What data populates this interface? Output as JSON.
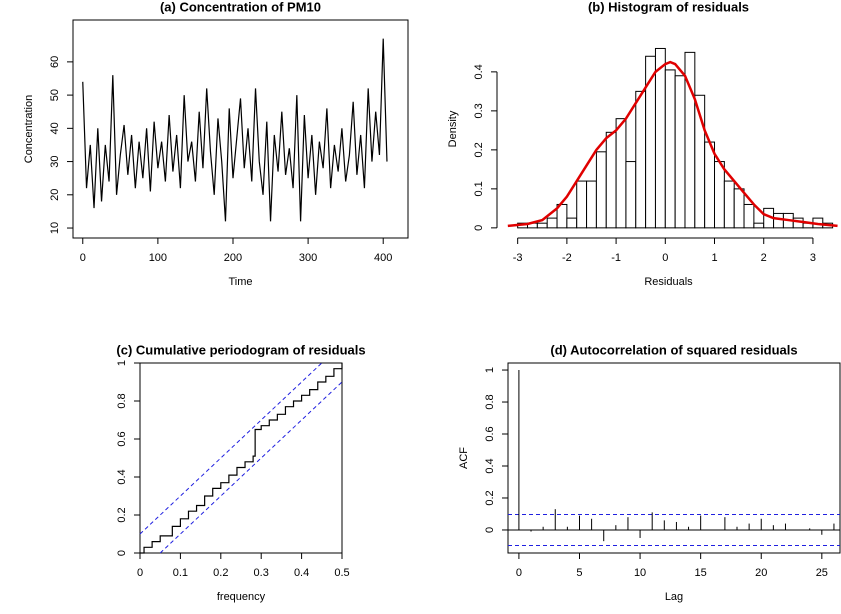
{
  "chart_data": [
    {
      "type": "line",
      "title": "(a) Concentration of PM10",
      "xlabel": "Time",
      "ylabel": "Concentration",
      "color": "#000000",
      "box": true,
      "xlim": [
        -13,
        433
      ],
      "ylim": [
        7,
        72.6
      ],
      "xticks": [
        0,
        100,
        200,
        300,
        400
      ],
      "yticks": [
        10,
        20,
        30,
        40,
        50,
        60
      ],
      "x": [
        0,
        5,
        10,
        15,
        20,
        25,
        30,
        35,
        40,
        45,
        50,
        55,
        60,
        65,
        70,
        75,
        80,
        85,
        90,
        95,
        100,
        105,
        110,
        115,
        120,
        125,
        130,
        135,
        140,
        145,
        150,
        155,
        160,
        165,
        170,
        175,
        180,
        185,
        190,
        195,
        200,
        205,
        210,
        215,
        220,
        225,
        230,
        235,
        240,
        245,
        250,
        255,
        260,
        265,
        270,
        275,
        280,
        285,
        290,
        295,
        300,
        305,
        310,
        315,
        320,
        325,
        330,
        335,
        340,
        345,
        350,
        355,
        360,
        365,
        370,
        375,
        380,
        385,
        390,
        395,
        400,
        405
      ],
      "values": [
        54,
        22,
        35,
        16,
        40,
        18,
        35,
        24,
        56,
        20,
        32,
        41,
        26,
        38,
        22,
        36,
        25,
        40,
        21,
        42,
        28,
        36,
        24,
        44,
        27,
        38,
        22,
        50,
        30,
        36,
        24,
        45,
        28,
        52,
        33,
        20,
        43,
        30,
        12,
        46,
        25,
        37,
        49,
        28,
        40,
        24,
        52,
        30,
        20,
        42,
        12,
        38,
        27,
        45,
        26,
        34,
        22,
        50,
        12,
        44,
        25,
        38,
        20,
        36,
        28,
        46,
        22,
        35,
        27,
        40,
        24,
        32,
        48,
        26,
        38,
        22,
        52,
        30,
        45,
        32,
        67,
        30
      ]
    },
    {
      "type": "histogram",
      "title": "(b) Histogram of residuals",
      "xlabel": "Residuals",
      "ylabel": "Density",
      "color": "#ffffff",
      "box": false,
      "xlim": [
        -3.42,
        3.55
      ],
      "ylim": [
        -0.026,
        0.533
      ],
      "xticks": [
        -3,
        -2,
        -1,
        0,
        1,
        2,
        3
      ],
      "yticks": [
        0.0,
        0.1,
        0.2,
        0.3,
        0.4
      ],
      "bins": [
        -3.0,
        -2.8,
        -2.6,
        -2.4,
        -2.2,
        -2.0,
        -1.8,
        -1.6,
        -1.4,
        -1.2,
        -1.0,
        -0.8,
        -0.6,
        -0.4,
        -0.2,
        0.0,
        0.2,
        0.4,
        0.6,
        0.8,
        1.0,
        1.2,
        1.4,
        1.6,
        1.8,
        2.0,
        2.2,
        2.4,
        2.6,
        2.8,
        3.0,
        3.2,
        3.4
      ],
      "values": [
        0.012,
        0.012,
        0.012,
        0.025,
        0.06,
        0.025,
        0.12,
        0.12,
        0.195,
        0.245,
        0.28,
        0.17,
        0.35,
        0.44,
        0.46,
        0.405,
        0.39,
        0.45,
        0.34,
        0.22,
        0.17,
        0.12,
        0.1,
        0.06,
        0.012,
        0.05,
        0.037,
        0.037,
        0.025,
        0.012,
        0.025,
        0.012
      ],
      "curve": {
        "color": "#e00000",
        "x": [
          -3.2,
          -2.8,
          -2.5,
          -2.2,
          -2.0,
          -1.8,
          -1.6,
          -1.4,
          -1.2,
          -1.0,
          -0.8,
          -0.6,
          -0.4,
          -0.2,
          0.0,
          0.1,
          0.2,
          0.4,
          0.6,
          0.8,
          1.0,
          1.2,
          1.4,
          1.6,
          1.8,
          2.0,
          2.2,
          2.5,
          2.8,
          3.1,
          3.5
        ],
        "values": [
          0.005,
          0.01,
          0.02,
          0.05,
          0.08,
          0.12,
          0.16,
          0.2,
          0.23,
          0.25,
          0.28,
          0.32,
          0.36,
          0.4,
          0.42,
          0.425,
          0.42,
          0.39,
          0.33,
          0.25,
          0.19,
          0.15,
          0.12,
          0.09,
          0.06,
          0.035,
          0.025,
          0.02,
          0.015,
          0.01,
          0.005
        ]
      }
    },
    {
      "type": "periodogram",
      "title": "(c) Cumulative periodogram of residuals",
      "xlabel": "frequency",
      "color": "#000000",
      "box": true,
      "xlim": [
        0,
        0.5
      ],
      "ylim": [
        0,
        1
      ],
      "xticks": [
        0.0,
        0.1,
        0.2,
        0.3,
        0.4,
        0.5
      ],
      "yticks": [
        0.0,
        0.2,
        0.4,
        0.6,
        0.8,
        1.0
      ],
      "x": [
        0,
        0.01,
        0.03,
        0.05,
        0.08,
        0.1,
        0.12,
        0.14,
        0.16,
        0.18,
        0.2,
        0.22,
        0.24,
        0.26,
        0.28,
        0.285,
        0.3,
        0.32,
        0.34,
        0.36,
        0.38,
        0.4,
        0.42,
        0.44,
        0.46,
        0.48,
        0.5
      ],
      "values": [
        0,
        0.03,
        0.06,
        0.09,
        0.14,
        0.18,
        0.22,
        0.25,
        0.3,
        0.34,
        0.37,
        0.41,
        0.45,
        0.48,
        0.51,
        0.65,
        0.67,
        0.7,
        0.73,
        0.77,
        0.8,
        0.83,
        0.86,
        0.9,
        0.93,
        0.97,
        1.0
      ],
      "bounds_color": "#2020e0",
      "bounds": [
        {
          "x": [
            0,
            0.45
          ],
          "values": [
            0.1,
            1.0
          ]
        },
        {
          "x": [
            0.05,
            0.5
          ],
          "values": [
            0,
            0.9
          ]
        }
      ]
    },
    {
      "type": "acf",
      "title": "(d) Autocorrelation of squared residuals",
      "xlabel": "Lag",
      "ylabel": "ACF",
      "color": "#000000",
      "box": true,
      "xlim": [
        -0.9,
        26.5
      ],
      "ylim": [
        -0.144,
        1.044
      ],
      "xticks": [
        0,
        5,
        10,
        15,
        20,
        25
      ],
      "yticks": [
        0.0,
        0.2,
        0.4,
        0.6,
        0.8,
        1.0
      ],
      "x": [
        0,
        1,
        2,
        3,
        4,
        5,
        6,
        7,
        8,
        9,
        10,
        11,
        12,
        13,
        14,
        15,
        16,
        17,
        18,
        19,
        20,
        21,
        22,
        23,
        24,
        25,
        26
      ],
      "values": [
        1,
        -0.01,
        0.02,
        0.13,
        0.02,
        0.09,
        0.07,
        -0.07,
        0.03,
        0.08,
        -0.05,
        0.11,
        0.06,
        0.05,
        0.02,
        0.09,
        0.0,
        0.08,
        0.02,
        0.04,
        0.07,
        0.03,
        0.04,
        0.0,
        0.01,
        -0.03,
        0.04
      ],
      "hline_color": "#2020e0",
      "hlines": [
        0.097,
        -0.097
      ]
    }
  ]
}
